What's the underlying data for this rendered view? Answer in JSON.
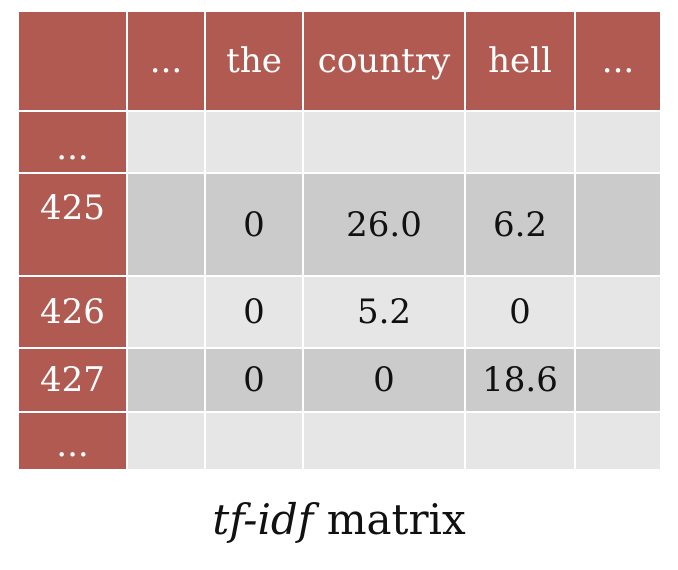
{
  "columns": [
    "",
    "...",
    "the",
    "country",
    "hell",
    "..."
  ],
  "rows": [
    {
      "label": "...",
      "values": [
        "",
        "",
        "",
        "",
        ""
      ],
      "shade": "light"
    },
    {
      "label": "425",
      "values": [
        "",
        "0",
        "26.0",
        "6.2",
        ""
      ],
      "shade": "dark"
    },
    {
      "label": "426",
      "values": [
        "",
        "0",
        "5.2",
        "0",
        ""
      ],
      "shade": "light"
    },
    {
      "label": "427",
      "values": [
        "",
        "0",
        "0",
        "18.6",
        ""
      ],
      "shade": "dark"
    },
    {
      "label": "...",
      "values": [
        "",
        "",
        "",
        "",
        ""
      ],
      "shade": "light"
    }
  ],
  "caption": {
    "italic": "tf-idf",
    "rest": " matrix"
  },
  "colors": {
    "header": "#b15a51",
    "cell_light": "#e6e6e6",
    "cell_dark": "#cbcbcb"
  }
}
